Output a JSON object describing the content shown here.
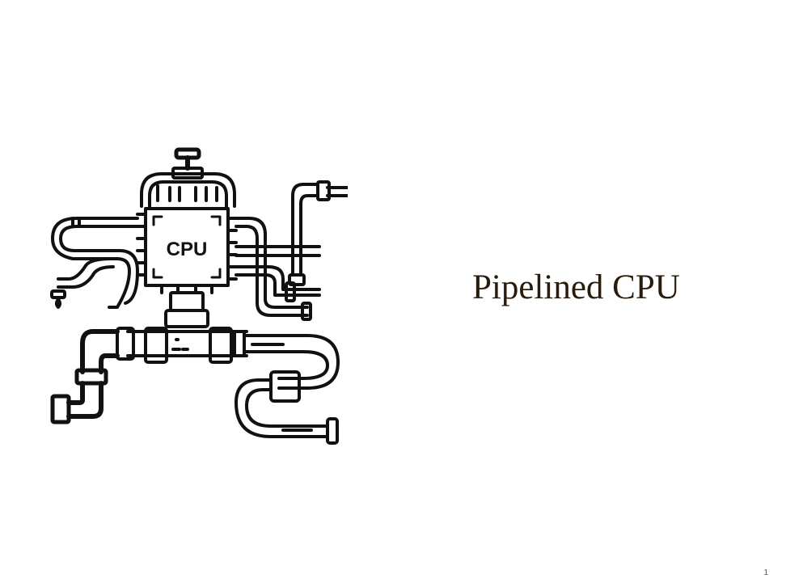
{
  "slide": {
    "title": "Pipelined CPU",
    "page_number": "1",
    "illustration": {
      "chip_label": "CPU",
      "icon": "cpu-pipes-icon"
    }
  },
  "colors": {
    "title": "#2a1c0c",
    "line_art": "#111111",
    "background": "#ffffff"
  }
}
